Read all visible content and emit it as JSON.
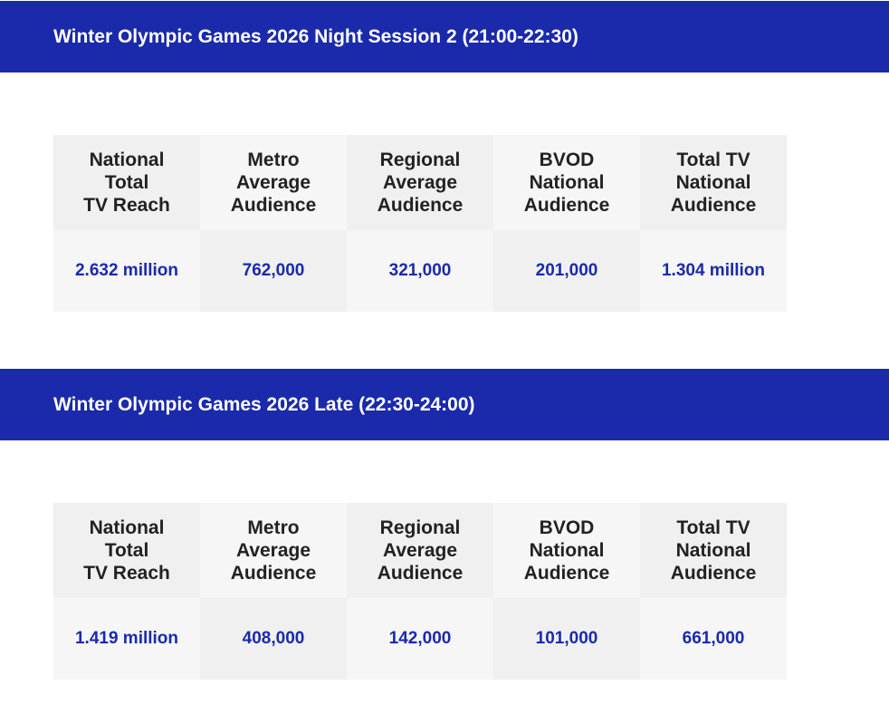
{
  "tables": [
    {
      "title": "Winter Olympic Games 2026 Night Session 2 (21:00-22:30)",
      "headers": [
        [
          "National",
          "Total",
          "TV Reach"
        ],
        [
          "Metro",
          "Average",
          "Audience"
        ],
        [
          "Regional",
          "Average",
          "Audience"
        ],
        [
          "BVOD",
          "National",
          "Audience"
        ],
        [
          "Total TV",
          "National",
          "Audience"
        ]
      ],
      "values": [
        "2.632 million",
        "762,000",
        "321,000",
        "201,000",
        "1.304 million"
      ]
    },
    {
      "title": "Winter Olympic Games 2026 Late (22:30-24:00)",
      "headers": [
        [
          "National",
          "Total",
          "TV Reach"
        ],
        [
          "Metro",
          "Average",
          "Audience"
        ],
        [
          "Regional",
          "Average",
          "Audience"
        ],
        [
          "BVOD",
          "National",
          "Audience"
        ],
        [
          "Total TV",
          "National",
          "Audience"
        ]
      ],
      "values": [
        "1.419 million",
        "408,000",
        "142,000",
        "101,000",
        "661,000"
      ]
    }
  ]
}
